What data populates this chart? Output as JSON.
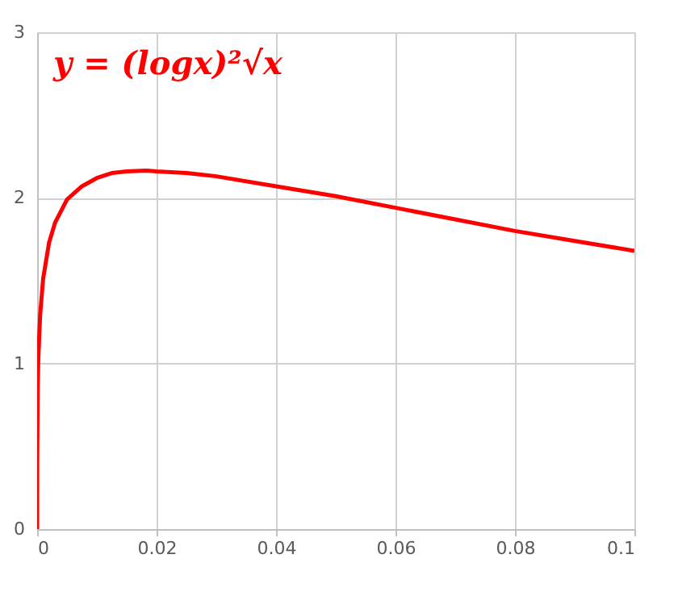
{
  "chart_data": {
    "type": "line",
    "title": "y = (logx)²√x",
    "grid": true,
    "line_style": "solid",
    "xlim": [
      0,
      0.1
    ],
    "xticks": [
      0,
      0.02,
      0.04,
      0.06,
      0.08,
      0.1
    ],
    "ylim": [
      0,
      3
    ],
    "yticks": [
      0,
      1,
      2,
      3
    ],
    "series": [
      {
        "color": "#ff0000",
        "x": [
          0,
          1e-06,
          1e-05,
          0.0001,
          0.0002,
          0.0005,
          0.001,
          0.002,
          0.003,
          0.005,
          0.0075,
          0.01,
          0.0125,
          0.015,
          0.0183,
          0.02,
          0.025,
          0.03,
          0.04,
          0.05,
          0.06,
          0.07,
          0.08,
          0.09,
          0.1
        ],
        "values": [
          0,
          0.19,
          0.42,
          0.85,
          1.03,
          1.29,
          1.51,
          1.73,
          1.85,
          1.99,
          2.07,
          2.12,
          2.15,
          2.16,
          2.165,
          2.16,
          2.15,
          2.13,
          2.07,
          2.01,
          1.94,
          1.87,
          1.8,
          1.74,
          1.68
        ]
      }
    ]
  }
}
